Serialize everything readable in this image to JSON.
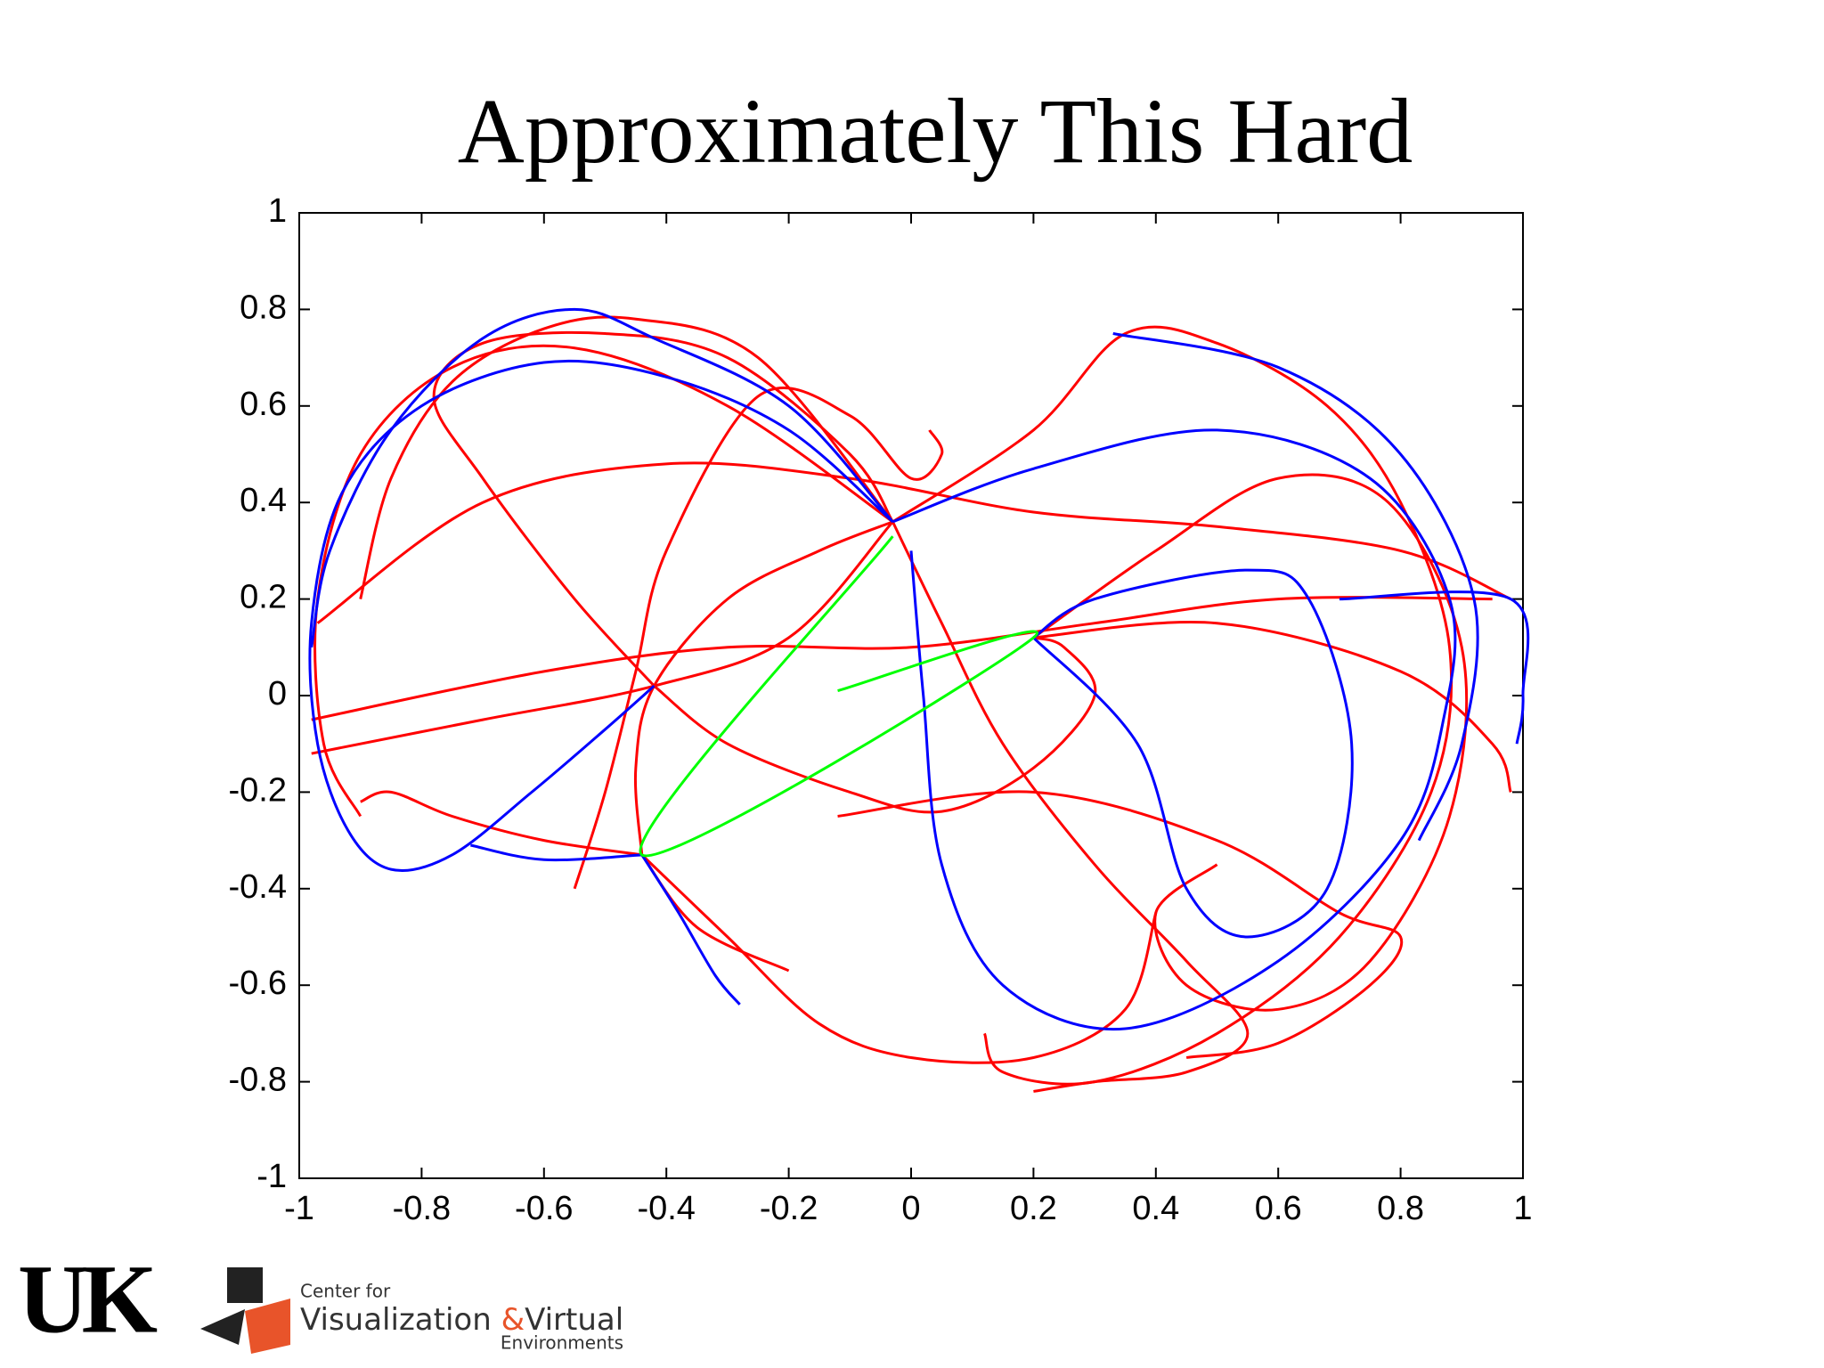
{
  "chart_data": {
    "type": "line",
    "title": "Approximately This Hard",
    "xlim": [
      -1,
      1
    ],
    "ylim": [
      -1,
      1
    ],
    "xticks": [
      -1,
      -0.8,
      -0.6,
      -0.4,
      -0.2,
      0,
      0.2,
      0.4,
      0.6,
      0.8,
      1
    ],
    "yticks": [
      -1,
      -0.8,
      -0.6,
      -0.4,
      -0.2,
      0,
      0.2,
      0.4,
      0.6,
      0.8,
      1
    ],
    "series": [
      {
        "color": "#ff0000",
        "x": [
          -0.03,
          -0.3,
          -0.55,
          -0.75,
          -0.9,
          -0.97,
          -0.96,
          -0.9
        ],
        "values": [
          0.36,
          0.6,
          0.72,
          0.68,
          0.5,
          0.2,
          -0.1,
          -0.25
        ]
      },
      {
        "color": "#ff0000",
        "x": [
          -0.03,
          -0.25,
          -0.45,
          -0.6,
          -0.75,
          -0.85,
          -0.9
        ],
        "values": [
          0.36,
          0.7,
          0.78,
          0.76,
          0.65,
          0.45,
          0.2
        ]
      },
      {
        "color": "#ff0000",
        "x": [
          -0.42,
          -0.55,
          -0.7,
          -0.78,
          -0.7,
          -0.5,
          -0.3,
          -0.1,
          -0.03
        ],
        "values": [
          0.02,
          0.2,
          0.45,
          0.62,
          0.73,
          0.75,
          0.7,
          0.5,
          0.36
        ]
      },
      {
        "color": "#ff0000",
        "x": [
          -0.97,
          -0.7,
          -0.4,
          -0.1,
          0.2,
          0.5,
          0.8,
          0.98
        ],
        "values": [
          0.15,
          0.4,
          0.48,
          0.45,
          0.38,
          0.35,
          0.3,
          0.2
        ]
      },
      {
        "color": "#ff0000",
        "x": [
          -0.98,
          -0.6,
          -0.3,
          0.0,
          0.3,
          0.6,
          0.95
        ],
        "values": [
          -0.05,
          0.05,
          0.1,
          0.1,
          0.15,
          0.2,
          0.2
        ]
      },
      {
        "color": "#ff0000",
        "x": [
          -0.03,
          0.2,
          0.35,
          0.5,
          0.68,
          0.8,
          0.88,
          0.85,
          0.7,
          0.5,
          0.3,
          0.15,
          0.12
        ],
        "values": [
          0.36,
          0.55,
          0.75,
          0.73,
          0.6,
          0.4,
          0.1,
          -0.2,
          -0.5,
          -0.7,
          -0.8,
          -0.78,
          -0.7
        ]
      },
      {
        "color": "#ff0000",
        "x": [
          0.2,
          0.4,
          0.6,
          0.78,
          0.9,
          0.88,
          0.75,
          0.6,
          0.45,
          0.4,
          0.5
        ],
        "values": [
          0.12,
          0.3,
          0.45,
          0.4,
          0.1,
          -0.25,
          -0.55,
          -0.65,
          -0.6,
          -0.45,
          -0.35
        ]
      },
      {
        "color": "#ff0000",
        "x": [
          -0.44,
          -0.6,
          -0.75,
          -0.85,
          -0.9
        ],
        "values": [
          -0.33,
          -0.3,
          -0.25,
          -0.2,
          -0.22
        ]
      },
      {
        "color": "#ff0000",
        "x": [
          -0.44,
          -0.45,
          -0.42,
          -0.3,
          -0.15,
          -0.03
        ],
        "values": [
          -0.33,
          -0.15,
          0.02,
          0.2,
          0.3,
          0.36
        ]
      },
      {
        "color": "#ff0000",
        "x": [
          -0.44,
          -0.3,
          -0.15,
          0.0,
          0.2,
          0.35,
          0.4
        ],
        "values": [
          -0.33,
          -0.5,
          -0.68,
          -0.75,
          -0.75,
          -0.65,
          -0.45
        ]
      },
      {
        "color": "#ff0000",
        "x": [
          -0.44,
          -0.35,
          -0.2
        ],
        "values": [
          -0.33,
          -0.48,
          -0.57
        ]
      },
      {
        "color": "#ff0000",
        "x": [
          -0.42,
          -0.3,
          -0.1,
          0.05,
          0.2,
          0.3,
          0.25,
          0.2
        ],
        "values": [
          0.02,
          -0.1,
          -0.2,
          -0.24,
          -0.15,
          0.0,
          0.1,
          0.12
        ]
      },
      {
        "color": "#ff0000",
        "x": [
          -0.03,
          0.05,
          0.15,
          0.3,
          0.45,
          0.55,
          0.45,
          0.3,
          0.2
        ],
        "values": [
          0.36,
          0.15,
          -0.1,
          -0.35,
          -0.55,
          -0.7,
          -0.78,
          -0.8,
          -0.82
        ]
      },
      {
        "color": "#ff0000",
        "x": [
          -0.55,
          -0.5,
          -0.45,
          -0.4,
          -0.25,
          -0.1,
          0.0,
          0.05,
          0.03
        ],
        "values": [
          -0.4,
          -0.2,
          0.05,
          0.3,
          0.62,
          0.58,
          0.45,
          0.5,
          0.55
        ]
      },
      {
        "color": "#ff0000",
        "x": [
          0.2,
          0.5,
          0.8,
          0.95,
          0.98
        ],
        "values": [
          0.12,
          0.15,
          0.05,
          -0.1,
          -0.2
        ]
      },
      {
        "color": "#ff0000",
        "x": [
          -0.12,
          0.2,
          0.5,
          0.7,
          0.8,
          0.75,
          0.6,
          0.45
        ],
        "values": [
          -0.25,
          -0.2,
          -0.3,
          -0.45,
          -0.5,
          -0.6,
          -0.72,
          -0.75
        ]
      },
      {
        "color": "#ff0000",
        "x": [
          -0.98,
          -0.7,
          -0.42,
          -0.2,
          -0.03
        ],
        "values": [
          -0.12,
          -0.05,
          0.02,
          0.12,
          0.36
        ]
      },
      {
        "color": "#0000ff",
        "x": [
          -0.03,
          -0.2,
          -0.4,
          -0.6,
          -0.8,
          -0.93,
          -0.98,
          -0.97,
          -0.92,
          -0.85,
          -0.75,
          -0.62,
          -0.5,
          -0.42
        ],
        "values": [
          0.36,
          0.55,
          0.66,
          0.69,
          0.6,
          0.42,
          0.15,
          -0.1,
          -0.28,
          -0.36,
          -0.33,
          -0.2,
          -0.07,
          0.02
        ]
      },
      {
        "color": "#0000ff",
        "x": [
          -0.03,
          -0.2,
          -0.42,
          -0.55,
          -0.7,
          -0.85,
          -0.95,
          -0.98
        ],
        "values": [
          0.36,
          0.6,
          0.74,
          0.8,
          0.74,
          0.55,
          0.3,
          0.1
        ]
      },
      {
        "color": "#0000ff",
        "x": [
          -0.03,
          0.2,
          0.5,
          0.75,
          0.88,
          0.87,
          0.8,
          0.6,
          0.35,
          0.15,
          0.05,
          0.02,
          0.0
        ],
        "values": [
          0.36,
          0.47,
          0.55,
          0.45,
          0.2,
          -0.05,
          -0.3,
          -0.55,
          -0.69,
          -0.6,
          -0.35,
          0.0,
          0.3
        ]
      },
      {
        "color": "#0000ff",
        "x": [
          0.2,
          0.37,
          0.45,
          0.55,
          0.68,
          0.72,
          0.65,
          0.55,
          0.3,
          0.2
        ],
        "values": [
          0.12,
          -0.1,
          -0.4,
          -0.5,
          -0.4,
          -0.1,
          0.2,
          0.26,
          0.2,
          0.12
        ]
      },
      {
        "color": "#0000ff",
        "x": [
          0.33,
          0.6,
          0.8,
          0.92,
          0.9,
          0.83
        ],
        "values": [
          0.75,
          0.68,
          0.5,
          0.2,
          -0.1,
          -0.3
        ]
      },
      {
        "color": "#0000ff",
        "x": [
          0.7,
          0.98,
          1.0,
          0.99
        ],
        "values": [
          0.2,
          0.2,
          0.0,
          -0.1
        ]
      },
      {
        "color": "#0000ff",
        "x": [
          -0.44,
          -0.38,
          -0.32,
          -0.28
        ],
        "values": [
          -0.33,
          -0.45,
          -0.58,
          -0.64
        ]
      },
      {
        "color": "#0000ff",
        "x": [
          -0.72,
          -0.6,
          -0.44
        ],
        "values": [
          -0.31,
          -0.34,
          -0.33
        ]
      },
      {
        "color": "#00ff00",
        "x": [
          -0.03,
          -0.44,
          0.2,
          -0.12
        ],
        "values": [
          0.33,
          -0.33,
          0.12,
          0.01
        ]
      }
    ]
  },
  "footer": {
    "logo": "UK",
    "center": "Center for",
    "name1": "Visualization",
    "amp": "&",
    "name2": "Virtual",
    "name3": "Environments"
  }
}
